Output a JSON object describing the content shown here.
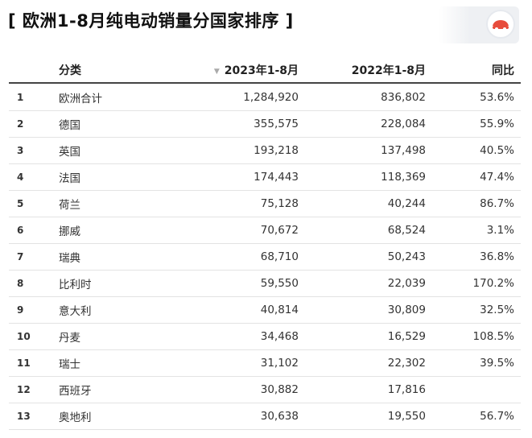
{
  "title": "[ 欧洲1-8月纯电动销量分国家排序 ]",
  "logo": {
    "name": "brand-logo",
    "accent": "#e74c3c"
  },
  "chart_data": {
    "type": "table",
    "columns": [
      "",
      "分类",
      "2023年1-8月",
      "2022年1-8月",
      "同比"
    ],
    "sort_indicator": "▼",
    "rows": [
      {
        "idx": "1",
        "name": "欧洲合计",
        "y2023": "1,284,920",
        "y2022": "836,802",
        "yoy": "53.6%"
      },
      {
        "idx": "2",
        "name": "德国",
        "y2023": "355,575",
        "y2022": "228,084",
        "yoy": "55.9%"
      },
      {
        "idx": "3",
        "name": "英国",
        "y2023": "193,218",
        "y2022": "137,498",
        "yoy": "40.5%"
      },
      {
        "idx": "4",
        "name": "法国",
        "y2023": "174,443",
        "y2022": "118,369",
        "yoy": "47.4%"
      },
      {
        "idx": "5",
        "name": "荷兰",
        "y2023": "75,128",
        "y2022": "40,244",
        "yoy": "86.7%"
      },
      {
        "idx": "6",
        "name": "挪威",
        "y2023": "70,672",
        "y2022": "68,524",
        "yoy": "3.1%"
      },
      {
        "idx": "7",
        "name": "瑞典",
        "y2023": "68,710",
        "y2022": "50,243",
        "yoy": "36.8%"
      },
      {
        "idx": "8",
        "name": "比利时",
        "y2023": "59,550",
        "y2022": "22,039",
        "yoy": "170.2%"
      },
      {
        "idx": "9",
        "name": "意大利",
        "y2023": "40,814",
        "y2022": "30,809",
        "yoy": "32.5%"
      },
      {
        "idx": "10",
        "name": "丹麦",
        "y2023": "34,468",
        "y2022": "16,529",
        "yoy": "108.5%"
      },
      {
        "idx": "11",
        "name": "瑞士",
        "y2023": "31,102",
        "y2022": "22,302",
        "yoy": "39.5%"
      },
      {
        "idx": "12",
        "name": "西班牙",
        "y2023": "30,882",
        "y2022": "17,816",
        "yoy": ""
      },
      {
        "idx": "13",
        "name": "奥地利",
        "y2023": "30,638",
        "y2022": "19,550",
        "yoy": "56.7%"
      }
    ]
  }
}
